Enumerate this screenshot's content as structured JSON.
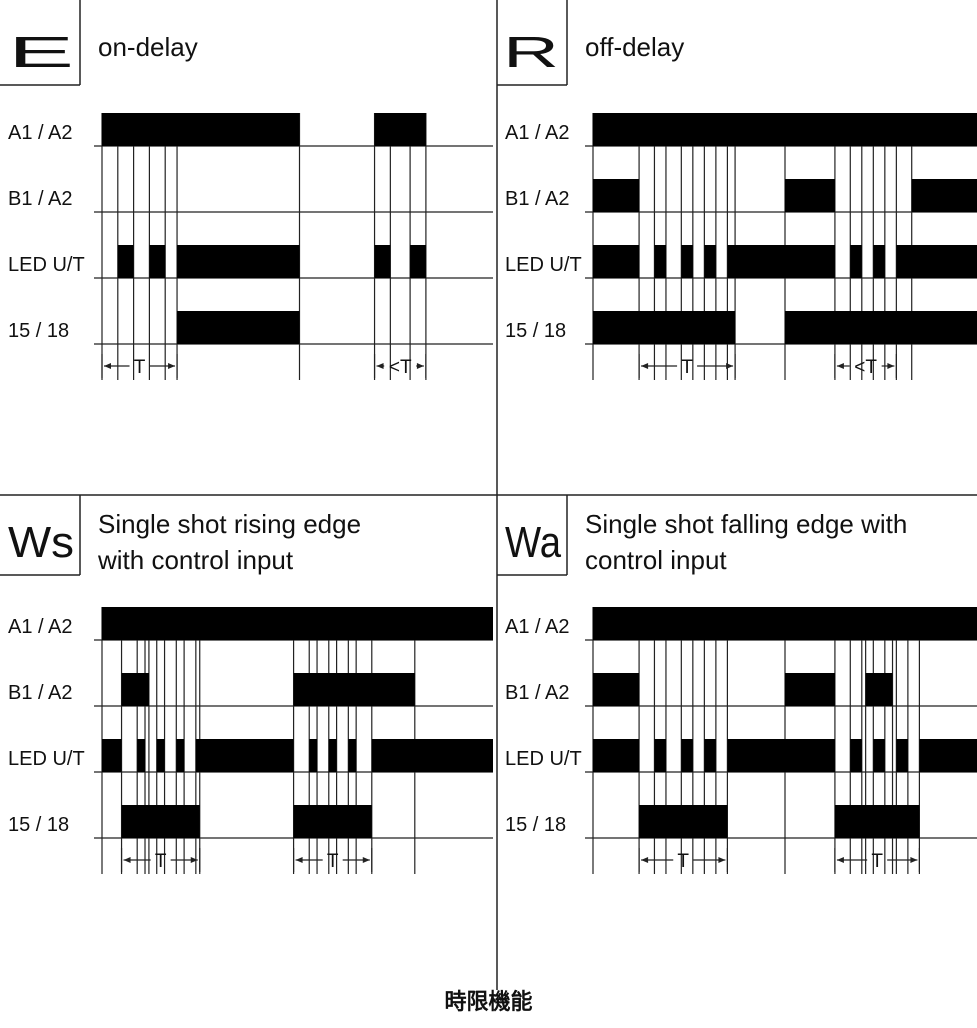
{
  "caption": "時限機能",
  "panels": [
    {
      "key": "E",
      "code": "E",
      "title_lines": [
        "on-delay"
      ],
      "rows": [
        {
          "label": "A1 / A2",
          "high": [
            [
              0,
              0.5
            ],
            [
              0.69,
              0.82
            ]
          ]
        },
        {
          "label": "B1 / A2",
          "high": []
        },
        {
          "label": "LED U/T",
          "high": [
            [
              0.04,
              0.08
            ],
            [
              0.12,
              0.16
            ],
            [
              0.19,
              0.5
            ],
            [
              0.69,
              0.73
            ],
            [
              0.78,
              0.82
            ]
          ]
        },
        {
          "label": "15 / 18",
          "high": [
            [
              0.19,
              0.5
            ]
          ]
        }
      ],
      "timing": [
        {
          "text": "T",
          "from": 0,
          "to": 0.19
        },
        {
          "text": "<T",
          "from": 0.69,
          "to": 0.82
        }
      ]
    },
    {
      "key": "R",
      "code": "R",
      "title_lines": [
        "off-delay"
      ],
      "rows": [
        {
          "label": "A1 / A2",
          "high": [
            [
              0,
              1
            ]
          ]
        },
        {
          "label": "B1 / A2",
          "high": [
            [
              0,
              0.12
            ],
            [
              0.5,
              0.63
            ],
            [
              0.83,
              1
            ]
          ]
        },
        {
          "label": "LED U/T",
          "high": [
            [
              0,
              0.12
            ],
            [
              0.16,
              0.19
            ],
            [
              0.23,
              0.26
            ],
            [
              0.29,
              0.32
            ],
            [
              0.35,
              0.63
            ],
            [
              0.67,
              0.7
            ],
            [
              0.73,
              0.76
            ],
            [
              0.79,
              1
            ]
          ]
        },
        {
          "label": "15 / 18",
          "high": [
            [
              0,
              0.37
            ],
            [
              0.5,
              1
            ]
          ]
        }
      ],
      "timing": [
        {
          "text": "T",
          "from": 0.12,
          "to": 0.37
        },
        {
          "text": "<T",
          "from": 0.63,
          "to": 0.79
        }
      ]
    },
    {
      "key": "Ws",
      "code": "Ws",
      "title_lines": [
        "Single shot rising edge",
        "with control input"
      ],
      "rows": [
        {
          "label": "A1 / A2",
          "high": [
            [
              0,
              1
            ]
          ]
        },
        {
          "label": "B1 / A2",
          "high": [
            [
              0.05,
              0.12
            ],
            [
              0.49,
              0.8
            ]
          ]
        },
        {
          "label": "LED U/T",
          "high": [
            [
              0,
              0.05
            ],
            [
              0.09,
              0.11
            ],
            [
              0.14,
              0.16
            ],
            [
              0.19,
              0.21
            ],
            [
              0.24,
              0.49
            ],
            [
              0.53,
              0.55
            ],
            [
              0.58,
              0.6
            ],
            [
              0.63,
              0.65
            ],
            [
              0.69,
              1
            ]
          ]
        },
        {
          "label": "15 / 18",
          "high": [
            [
              0.05,
              0.25
            ],
            [
              0.49,
              0.69
            ]
          ]
        }
      ],
      "timing": [
        {
          "text": "T",
          "from": 0.05,
          "to": 0.25
        },
        {
          "text": "T",
          "from": 0.49,
          "to": 0.69
        }
      ]
    },
    {
      "key": "Wa",
      "code": "Wa",
      "title_lines": [
        "Single shot falling edge with",
        "control input"
      ],
      "rows": [
        {
          "label": "A1 / A2",
          "high": [
            [
              0,
              1
            ]
          ]
        },
        {
          "label": "B1 / A2",
          "high": [
            [
              0,
              0.12
            ],
            [
              0.5,
              0.63
            ],
            [
              0.71,
              0.78
            ]
          ]
        },
        {
          "label": "LED U/T",
          "high": [
            [
              0,
              0.12
            ],
            [
              0.16,
              0.19
            ],
            [
              0.23,
              0.26
            ],
            [
              0.29,
              0.32
            ],
            [
              0.35,
              0.63
            ],
            [
              0.67,
              0.7
            ],
            [
              0.73,
              0.76
            ],
            [
              0.79,
              0.82
            ],
            [
              0.85,
              1
            ]
          ]
        },
        {
          "label": "15 / 18",
          "high": [
            [
              0.12,
              0.35
            ],
            [
              0.63,
              0.85
            ]
          ]
        }
      ],
      "timing": [
        {
          "text": "T",
          "from": 0.12,
          "to": 0.35
        },
        {
          "text": "T",
          "from": 0.63,
          "to": 0.85
        }
      ]
    }
  ]
}
